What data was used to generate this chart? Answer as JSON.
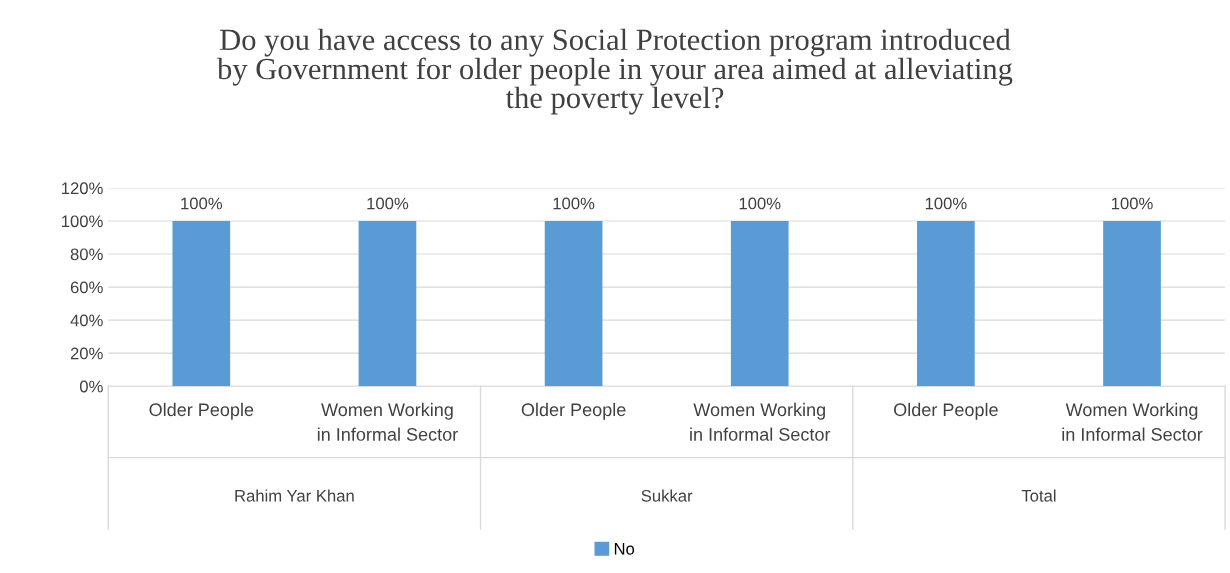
{
  "chart_data": {
    "type": "bar",
    "title": "Do you have access to any Social Protection program introduced\nby Government for older people in your area aimed at alleviating\nthe poverty level?",
    "categories": [
      "Older People",
      "Women Working\nin Informal Sector",
      "Older People",
      "Women Working\nin Informal Sector",
      "Older People",
      "Women Working\nin Informal Sector"
    ],
    "series": [
      {
        "name": "No",
        "color": "#5b9bd5",
        "values": [
          100,
          100,
          100,
          100,
          100,
          100
        ],
        "value_labels": [
          "100%",
          "100%",
          "100%",
          "100%",
          "100%",
          "100%"
        ]
      }
    ],
    "annotations": [
      "Rahim Yar Khan",
      "Sukkar",
      "Total"
    ],
    "ylim": [
      0,
      120
    ],
    "yticks": [
      {
        "value": 0,
        "label": "0%"
      },
      {
        "value": 20,
        "label": "20%"
      },
      {
        "value": 40,
        "label": "40%"
      },
      {
        "value": 60,
        "label": "60%"
      },
      {
        "value": 80,
        "label": "80%"
      },
      {
        "value": 100,
        "label": "100%"
      },
      {
        "value": 120,
        "label": "120%"
      }
    ],
    "grid": "y",
    "legend": "bottom"
  }
}
